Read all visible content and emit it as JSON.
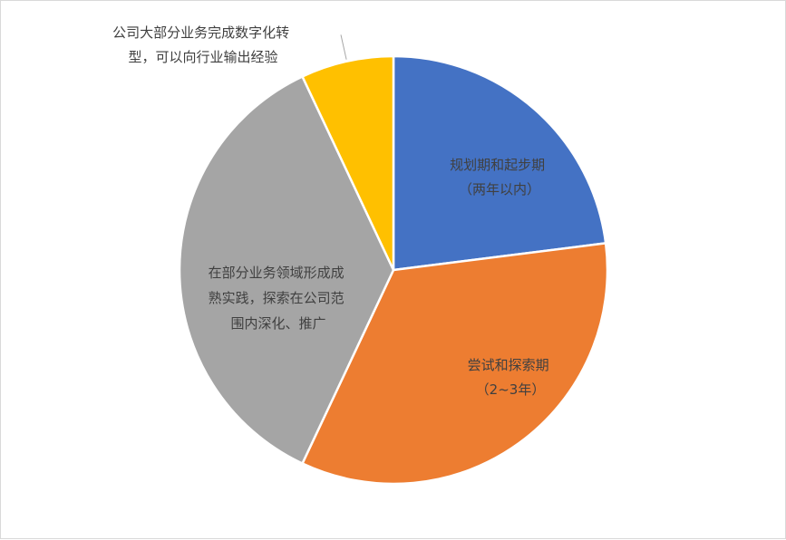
{
  "chart_data": {
    "type": "pie",
    "title": "",
    "colors": [
      "#4472c4",
      "#ed7d31",
      "#a5a5a5",
      "#ffc000"
    ],
    "slices": [
      {
        "label_lines": [
          "规划期和起步期",
          "（两年以内）"
        ],
        "value": 23
      },
      {
        "label_lines": [
          "尝试和探索期",
          "（2~3年）"
        ],
        "value": 34
      },
      {
        "label_lines": [
          "在部分业务领域形成成",
          "熟实践，探索在公司范",
          "围内深化、推广"
        ],
        "value": 36
      },
      {
        "label_lines": [
          "公司大部分业务完成数字化转",
          "型，可以向行业输出经验"
        ],
        "value": 7
      }
    ]
  }
}
